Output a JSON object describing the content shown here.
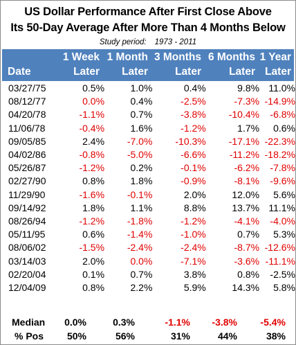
{
  "title_line1": "US Dollar Performance After First Close Above",
  "title_line2": "Its 50-Day Average After More Than 4 Months Below",
  "period_label": "Study period:",
  "period_value": "1973 - 2011",
  "header": {
    "date": "Date",
    "cols": [
      {
        "line1": "1 Week",
        "line2": "Later"
      },
      {
        "line1": "1 Month",
        "line2": "Later"
      },
      {
        "line1": "3 Months",
        "line2": "Later"
      },
      {
        "line1": "6 Months",
        "line2": "Later"
      },
      {
        "line1": "1 Year",
        "line2": "Later"
      }
    ]
  },
  "rows": [
    {
      "date": "03/27/75",
      "v": [
        "0.5%",
        "1.0%",
        "0.4%",
        "9.8%",
        "11.0%"
      ]
    },
    {
      "date": "08/12/77",
      "v": [
        "0.0%",
        "0.4%",
        "-2.5%",
        "-7.3%",
        "-14.9%"
      ]
    },
    {
      "date": "04/20/78",
      "v": [
        "-1.1%",
        "0.7%",
        "-3.8%",
        "-10.4%",
        "-6.8%"
      ]
    },
    {
      "date": "11/06/78",
      "v": [
        "-0.4%",
        "1.6%",
        "-1.2%",
        "1.7%",
        "0.6%"
      ]
    },
    {
      "date": "09/05/85",
      "v": [
        "2.4%",
        "-7.0%",
        "-10.3%",
        "-17.1%",
        "-22.3%"
      ]
    },
    {
      "date": "04/02/86",
      "v": [
        "-0.8%",
        "-5.0%",
        "-6.6%",
        "-11.2%",
        "-18.2%"
      ]
    },
    {
      "date": "05/26/87",
      "v": [
        "-1.2%",
        "0.2%",
        "-0.1%",
        "-6.2%",
        "-7.8%"
      ]
    },
    {
      "date": "02/27/90",
      "v": [
        "0.8%",
        "1.8%",
        "-0.9%",
        "-8.1%",
        "-9.6%"
      ]
    },
    {
      "date": "11/29/90",
      "v": [
        "-1.6%",
        "-0.1%",
        "2.0%",
        "12.0%",
        "5.6%"
      ]
    },
    {
      "date": "09/14/92",
      "v": [
        "1.8%",
        "1.1%",
        "8.8%",
        "13.7%",
        "11.1%"
      ]
    },
    {
      "date": "08/26/94",
      "v": [
        "-1.2%",
        "-1.8%",
        "-1.2%",
        "-4.1%",
        "-4.0%"
      ]
    },
    {
      "date": "05/11/95",
      "v": [
        "0.6%",
        "-1.4%",
        "-1.0%",
        "0.7%",
        "5.3%"
      ]
    },
    {
      "date": "08/06/02",
      "v": [
        "-1.5%",
        "-2.4%",
        "-2.4%",
        "-8.7%",
        "-12.6%"
      ]
    },
    {
      "date": "03/14/03",
      "v": [
        "2.0%",
        "0.0%",
        "-7.1%",
        "-3.6%",
        "-11.1%"
      ]
    },
    {
      "date": "02/20/04",
      "v": [
        "0.1%",
        "0.7%",
        "3.8%",
        "0.8%",
        "-2.5%"
      ]
    },
    {
      "date": "12/04/09",
      "v": [
        "0.8%",
        "2.2%",
        "5.9%",
        "14.3%",
        "5.8%"
      ]
    }
  ],
  "red_cells": {
    "1": [
      0,
      2,
      3,
      4
    ],
    "2": [
      0,
      2,
      3,
      4
    ],
    "3": [
      0,
      2
    ],
    "4": [
      1,
      2,
      3,
      4
    ],
    "5": [
      0,
      1,
      2,
      3,
      4
    ],
    "6": [
      0,
      2,
      3,
      4
    ],
    "7": [
      2,
      3,
      4
    ],
    "8": [
      0,
      1
    ],
    "10": [
      0,
      1,
      2,
      3,
      4
    ],
    "11": [
      1,
      2
    ],
    "12": [
      0,
      1,
      2,
      3,
      4
    ],
    "13": [
      1,
      2,
      3,
      4
    ],
    "15": []
  },
  "median": {
    "label": "Median",
    "v": [
      "0.0%",
      "0.3%",
      "-1.1%",
      "-3.8%",
      "-5.4%"
    ],
    "red": [
      2,
      3,
      4
    ]
  },
  "pos": {
    "label": "% Pos",
    "v": [
      "50%",
      "56%",
      "31%",
      "44%",
      "38%"
    ]
  },
  "colors": {
    "header_bg": "#4f81bd",
    "header_text": "#ffffff",
    "negative": "#e00000",
    "positive": "#000000"
  }
}
